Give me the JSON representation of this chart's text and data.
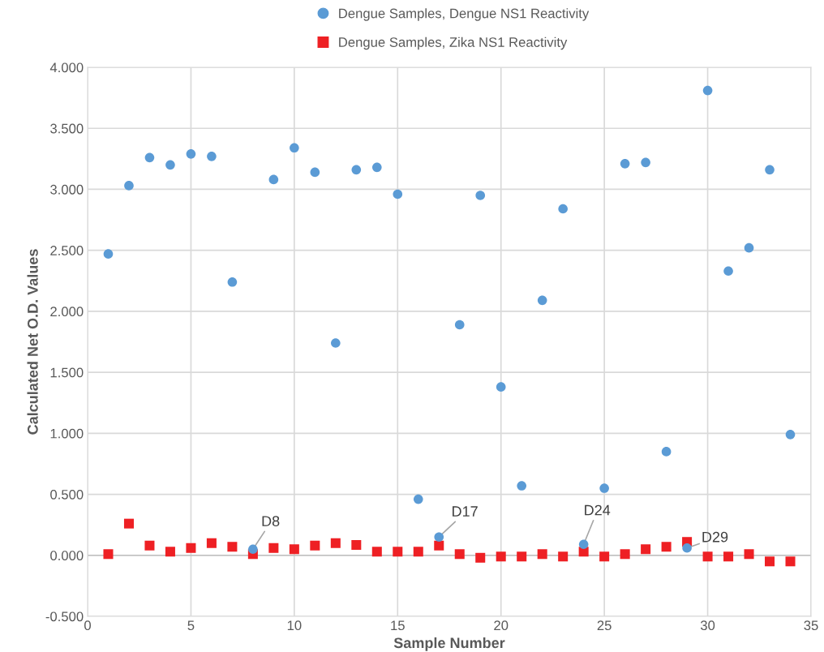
{
  "chart_data": {
    "type": "scatter",
    "xlabel": "Sample Number",
    "ylabel": "Calculated Net O.D. Values",
    "x": [
      1,
      2,
      3,
      4,
      5,
      6,
      7,
      8,
      9,
      10,
      11,
      12,
      13,
      14,
      15,
      16,
      17,
      18,
      19,
      20,
      21,
      22,
      23,
      24,
      25,
      26,
      27,
      28,
      29,
      30,
      31,
      32,
      33,
      34
    ],
    "series": [
      {
        "name": "Dengue Samples, Dengue NS1 Reactivity",
        "color": "#5b9bd5",
        "marker": "circle",
        "values": [
          2.47,
          3.03,
          3.26,
          3.2,
          3.29,
          3.27,
          2.24,
          0.05,
          3.08,
          3.34,
          3.14,
          1.74,
          3.16,
          3.18,
          2.96,
          0.46,
          0.15,
          1.89,
          2.95,
          1.38,
          0.57,
          2.09,
          2.84,
          0.09,
          0.55,
          3.21,
          3.22,
          0.85,
          0.06,
          3.81,
          2.33,
          2.52,
          3.16,
          0.99
        ]
      },
      {
        "name": "Dengue Samples, Zika NS1 Reactivity",
        "color": "#ee2024",
        "marker": "square",
        "values": [
          0.01,
          0.26,
          0.08,
          0.03,
          0.06,
          0.1,
          0.07,
          0.01,
          0.06,
          0.05,
          0.08,
          0.1,
          0.085,
          0.03,
          0.03,
          0.03,
          0.08,
          0.01,
          -0.02,
          -0.01,
          -0.01,
          0.01,
          -0.01,
          0.03,
          -0.01,
          0.01,
          0.05,
          0.07,
          0.11,
          -0.01,
          -0.01,
          0.01,
          -0.05,
          -0.05
        ]
      }
    ],
    "annotations": [
      {
        "text": "D8",
        "x": 8,
        "y": 0.05
      },
      {
        "text": "D17",
        "x": 17,
        "y": 0.15
      },
      {
        "text": "D24",
        "x": 24,
        "y": 0.09
      },
      {
        "text": "D29",
        "x": 29,
        "y": 0.06
      }
    ],
    "xlim": [
      0,
      35
    ],
    "xticks": [
      0,
      5,
      10,
      15,
      20,
      25,
      30,
      35
    ],
    "ylim": [
      -0.5,
      4
    ],
    "yticks": [
      {
        "value": -0.5,
        "label": "-0.500"
      },
      {
        "value": 0,
        "label": "0.000"
      },
      {
        "value": 0.5,
        "label": "0.500"
      },
      {
        "value": 1,
        "label": "1.000"
      },
      {
        "value": 1.5,
        "label": "1.500"
      },
      {
        "value": 2,
        "label": "2.000"
      },
      {
        "value": 2.5,
        "label": "2.500"
      },
      {
        "value": 3,
        "label": "3.000"
      },
      {
        "value": 3.5,
        "label": "3.500"
      },
      {
        "value": 4,
        "label": "4.000"
      }
    ],
    "grid": true,
    "legend": "top"
  }
}
